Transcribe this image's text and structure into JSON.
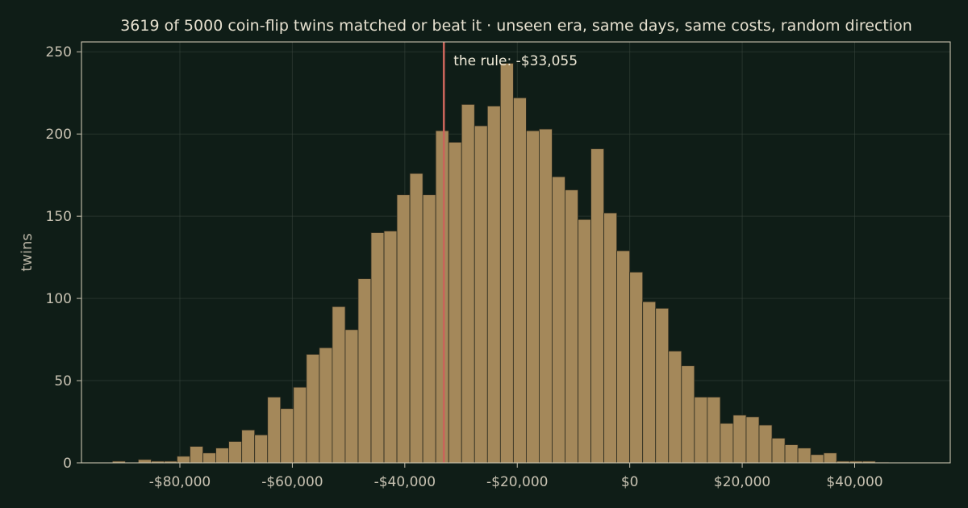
{
  "chart_data": {
    "type": "bar",
    "title": "3619 of 5000 coin-flip twins matched or beat it  ·  unseen era, same days, same costs, random direction",
    "xlabel": "",
    "ylabel": "twins",
    "xlim": [
      -97500,
      57000
    ],
    "ylim": [
      0,
      256
    ],
    "bin_start": -92000,
    "bin_width": 2300,
    "values": [
      1,
      0,
      2,
      1,
      1,
      4,
      10,
      6,
      9,
      13,
      20,
      17,
      40,
      33,
      46,
      66,
      70,
      95,
      81,
      112,
      140,
      141,
      163,
      176,
      163,
      202,
      195,
      218,
      205,
      217,
      243,
      222,
      202,
      203,
      174,
      166,
      148,
      191,
      152,
      129,
      116,
      98,
      94,
      68,
      59,
      40,
      40,
      24,
      29,
      28,
      23,
      15,
      11,
      9,
      5,
      6,
      1,
      1,
      1,
      0.4
    ],
    "xticks": [
      -80000,
      -60000,
      -40000,
      -20000,
      0,
      20000,
      40000
    ],
    "xtick_labels": [
      "-$80,000",
      "-$60,000",
      "-$40,000",
      "-$20,000",
      "$0",
      "$20,000",
      "$40,000"
    ],
    "yticks": [
      0,
      50,
      100,
      150,
      200,
      250
    ],
    "ytick_labels": [
      "0",
      "50",
      "100",
      "150",
      "200",
      "250"
    ],
    "grid": true,
    "marker": {
      "value": -33055,
      "label": "the rule: -$33,055",
      "color": "#c9645a"
    },
    "bar_color": "#a4885a",
    "background": "#0f1d17"
  }
}
